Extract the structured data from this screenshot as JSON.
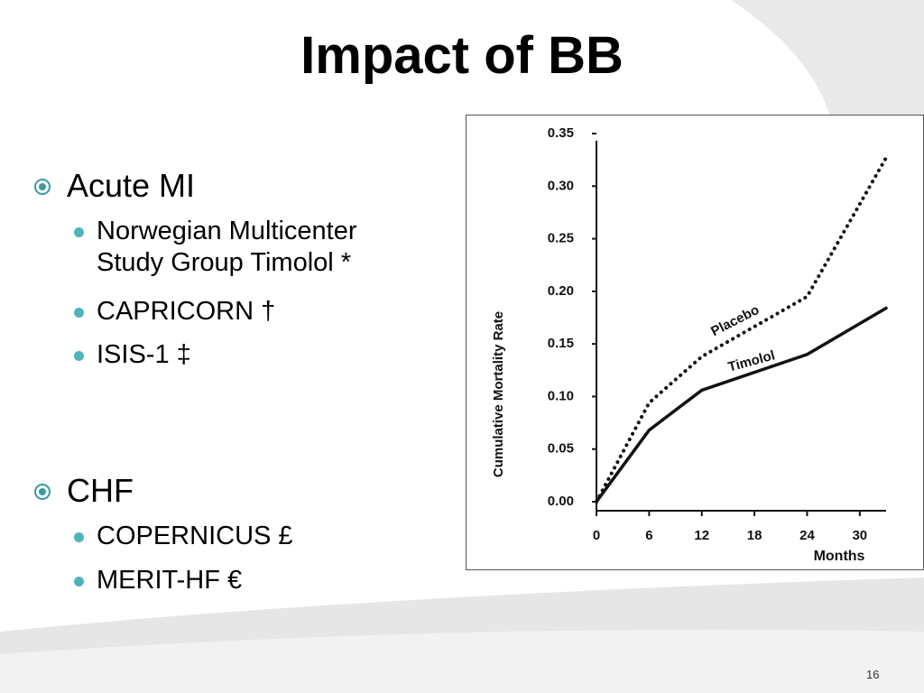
{
  "slide": {
    "title": "Impact of BB",
    "page_number": "16",
    "sections": [
      {
        "heading": "Acute MI",
        "items": [
          "Norwegian Multicenter Study Group Timolol *",
          "CAPRICORN †",
          "ISIS-1 ‡"
        ]
      },
      {
        "heading": "CHF",
        "items": [
          "COPERNICUS £",
          "MERIT-HF €"
        ]
      }
    ]
  },
  "chart_data": {
    "type": "line",
    "y_label": "Cumulative Mortality Rate",
    "x_label": "Months",
    "x": [
      0,
      6,
      12,
      24,
      33
    ],
    "series": [
      {
        "name": "Placebo",
        "color": "#111111",
        "dash": "dotted",
        "values": [
          0,
          0.094,
          0.138,
          0.195,
          0.327
        ]
      },
      {
        "name": "Timolol",
        "color": "#111111",
        "dash": "solid",
        "values": [
          0,
          0.068,
          0.106,
          0.14,
          0.184
        ]
      }
    ],
    "xlim": [
      0,
      33
    ],
    "xticks": [
      0,
      6,
      12,
      18,
      24,
      30
    ],
    "ylim": [
      0,
      0.35
    ],
    "yticks": [
      {
        "value": 0,
        "label": "0.00"
      },
      0.05,
      {
        "value": 0.1,
        "label": "0.10"
      },
      0.15,
      {
        "value": 0.2,
        "label": "0.20"
      },
      0.25,
      {
        "value": 0.3,
        "label": "0.30"
      },
      0.35
    ]
  }
}
